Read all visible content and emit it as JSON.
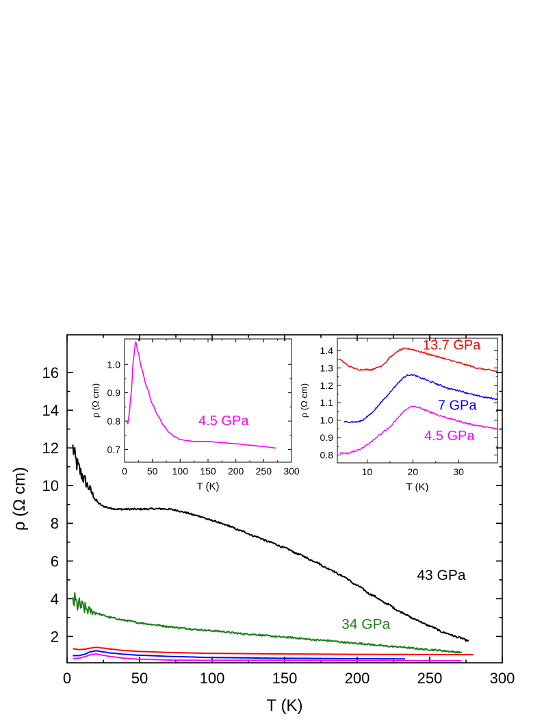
{
  "chart_data": [
    {
      "type": "line",
      "name": "main",
      "xlabel": "T (K)",
      "ylabel": "ρ (Ω cm)",
      "xlim": [
        0,
        300
      ],
      "ylim": [
        0.6,
        18
      ],
      "x_ticks": [
        0,
        50,
        100,
        150,
        200,
        250,
        300
      ],
      "y_ticks": [
        2,
        4,
        6,
        8,
        10,
        12,
        14,
        16
      ],
      "grid": false,
      "legend": "none",
      "annotations": [
        {
          "text": "43 GPa",
          "color": "#000000",
          "x": 258,
          "y": 5.0
        },
        {
          "text": "34 GPa",
          "color": "#1a7f1a",
          "x": 206,
          "y": 2.4
        }
      ],
      "series": [
        {
          "color": "#000000",
          "noisy": true,
          "x": [
            4,
            6,
            8,
            10,
            12,
            15,
            18,
            20,
            22,
            25,
            30,
            35,
            40,
            45,
            50,
            55,
            60,
            65,
            70,
            75,
            80,
            90,
            100,
            110,
            120,
            130,
            140,
            150,
            160,
            170,
            180,
            190,
            200,
            210,
            220,
            230,
            240,
            250,
            260,
            270,
            277
          ],
          "y": [
            12.0,
            11.3,
            10.9,
            10.6,
            10.3,
            9.9,
            9.5,
            9.2,
            9.05,
            8.9,
            8.8,
            8.75,
            8.75,
            8.75,
            8.75,
            8.76,
            8.77,
            8.77,
            8.75,
            8.7,
            8.6,
            8.4,
            8.15,
            7.9,
            7.6,
            7.3,
            7.0,
            6.7,
            6.35,
            6.0,
            5.6,
            5.2,
            4.7,
            4.2,
            3.75,
            3.3,
            2.9,
            2.55,
            2.2,
            1.95,
            1.75
          ]
        },
        {
          "color": "#1a7f1a",
          "noisy": true,
          "x": [
            4,
            8,
            12,
            16,
            20,
            25,
            30,
            40,
            50,
            60,
            70,
            80,
            90,
            100,
            125,
            150,
            175,
            200,
            225,
            250,
            272
          ],
          "y": [
            3.9,
            3.65,
            3.5,
            3.35,
            3.25,
            3.12,
            3.0,
            2.85,
            2.72,
            2.62,
            2.52,
            2.44,
            2.36,
            2.3,
            2.12,
            1.96,
            1.8,
            1.63,
            1.46,
            1.3,
            1.15
          ]
        },
        {
          "color": "#ff0000",
          "noisy": false,
          "x": [
            4,
            8,
            12,
            16,
            20,
            25,
            30,
            40,
            50,
            75,
            100,
            150,
            200,
            250,
            280
          ],
          "y": [
            1.35,
            1.3,
            1.32,
            1.38,
            1.42,
            1.38,
            1.33,
            1.25,
            1.2,
            1.14,
            1.1,
            1.07,
            1.05,
            1.04,
            1.03
          ]
        },
        {
          "color": "#0000ff",
          "noisy": false,
          "x": [
            4,
            8,
            12,
            16,
            20,
            25,
            30,
            40,
            50,
            75,
            100,
            150,
            200,
            233
          ],
          "y": [
            0.98,
            0.98,
            1.05,
            1.18,
            1.24,
            1.18,
            1.12,
            1.05,
            1.0,
            0.93,
            0.88,
            0.84,
            0.82,
            0.81
          ]
        },
        {
          "color": "#ff00ff",
          "noisy": false,
          "x": [
            4,
            8,
            12,
            16,
            20,
            25,
            30,
            40,
            50,
            75,
            100,
            150,
            200,
            250,
            272
          ],
          "y": [
            0.82,
            0.84,
            0.92,
            1.02,
            1.07,
            1.0,
            0.93,
            0.84,
            0.79,
            0.74,
            0.73,
            0.73,
            0.72,
            0.71,
            0.71
          ]
        }
      ]
    },
    {
      "type": "line",
      "name": "inset-left",
      "xlabel": "T (K)",
      "ylabel": "ρ (Ω cm)",
      "xlim": [
        0,
        300
      ],
      "ylim": [
        0.655,
        1.09
      ],
      "x_ticks": [
        0,
        50,
        100,
        150,
        200,
        250,
        300
      ],
      "y_ticks": [
        0.7,
        0.8,
        0.9,
        1.0
      ],
      "annotations": [
        {
          "text": "4.5 GPa",
          "color": "#ff00ff",
          "x": 178,
          "y": 0.785
        }
      ],
      "series": [
        {
          "color": "#ff00ff",
          "noisy": false,
          "x": [
            4,
            6,
            8,
            12,
            16,
            20,
            25,
            30,
            40,
            50,
            60,
            70,
            80,
            90,
            100,
            110,
            125,
            150,
            175,
            200,
            225,
            250,
            272
          ],
          "y": [
            0.8,
            0.79,
            0.82,
            0.9,
            1.02,
            1.08,
            1.04,
            0.99,
            0.92,
            0.86,
            0.82,
            0.785,
            0.76,
            0.745,
            0.735,
            0.732,
            0.728,
            0.728,
            0.724,
            0.72,
            0.715,
            0.71,
            0.705
          ]
        }
      ]
    },
    {
      "type": "line",
      "name": "inset-right",
      "xlabel": "T (K)",
      "ylabel": "ρ (Ω cm)",
      "xlim": [
        3.5,
        38.5
      ],
      "ylim": [
        0.755,
        1.47
      ],
      "x_ticks": [
        10,
        20,
        30
      ],
      "y_ticks": [
        0.8,
        0.9,
        1.0,
        1.1,
        1.2,
        1.3,
        1.4
      ],
      "annotations": [
        {
          "text": "13.7 GPa",
          "color": "#ff0000",
          "x": 28.5,
          "y": 1.405
        },
        {
          "text": "7 GPa",
          "color": "#0000ff",
          "x": 29.7,
          "y": 1.06
        },
        {
          "text": "4.5 GPa",
          "color": "#ff00ff",
          "x": 28.0,
          "y": 0.885
        }
      ],
      "series": [
        {
          "color": "#ff0000",
          "noisy": true,
          "x": [
            4,
            5,
            6,
            7,
            8,
            9,
            10,
            11,
            12,
            13,
            14,
            15,
            16,
            17,
            18,
            19,
            20,
            22,
            24,
            26,
            28,
            30,
            32,
            34,
            36,
            38.5
          ],
          "y": [
            1.35,
            1.33,
            1.31,
            1.3,
            1.29,
            1.29,
            1.29,
            1.29,
            1.3,
            1.31,
            1.33,
            1.36,
            1.38,
            1.4,
            1.41,
            1.41,
            1.405,
            1.39,
            1.375,
            1.36,
            1.345,
            1.33,
            1.315,
            1.3,
            1.29,
            1.28
          ]
        },
        {
          "color": "#0000ff",
          "noisy": true,
          "x": [
            5,
            6,
            7,
            8,
            9,
            10,
            11,
            12,
            13,
            14,
            15,
            16,
            17,
            18,
            19,
            20,
            22,
            24,
            26,
            28,
            30,
            32,
            34,
            36,
            38.5
          ],
          "y": [
            0.99,
            0.99,
            0.99,
            0.99,
            1.0,
            1.02,
            1.04,
            1.07,
            1.1,
            1.13,
            1.16,
            1.19,
            1.22,
            1.245,
            1.26,
            1.26,
            1.24,
            1.22,
            1.2,
            1.18,
            1.17,
            1.155,
            1.14,
            1.13,
            1.12
          ]
        },
        {
          "color": "#ff00ff",
          "noisy": true,
          "x": [
            4,
            5,
            6,
            7,
            8,
            9,
            10,
            11,
            12,
            13,
            14,
            15,
            16,
            17,
            18,
            19,
            20,
            21,
            22,
            24,
            26,
            28,
            30,
            32,
            34,
            36,
            38.5
          ],
          "y": [
            0.81,
            0.81,
            0.81,
            0.82,
            0.83,
            0.84,
            0.86,
            0.88,
            0.9,
            0.92,
            0.94,
            0.96,
            0.99,
            1.02,
            1.05,
            1.07,
            1.08,
            1.075,
            1.065,
            1.045,
            1.025,
            1.01,
            0.995,
            0.98,
            0.97,
            0.96,
            0.95
          ]
        }
      ]
    }
  ]
}
